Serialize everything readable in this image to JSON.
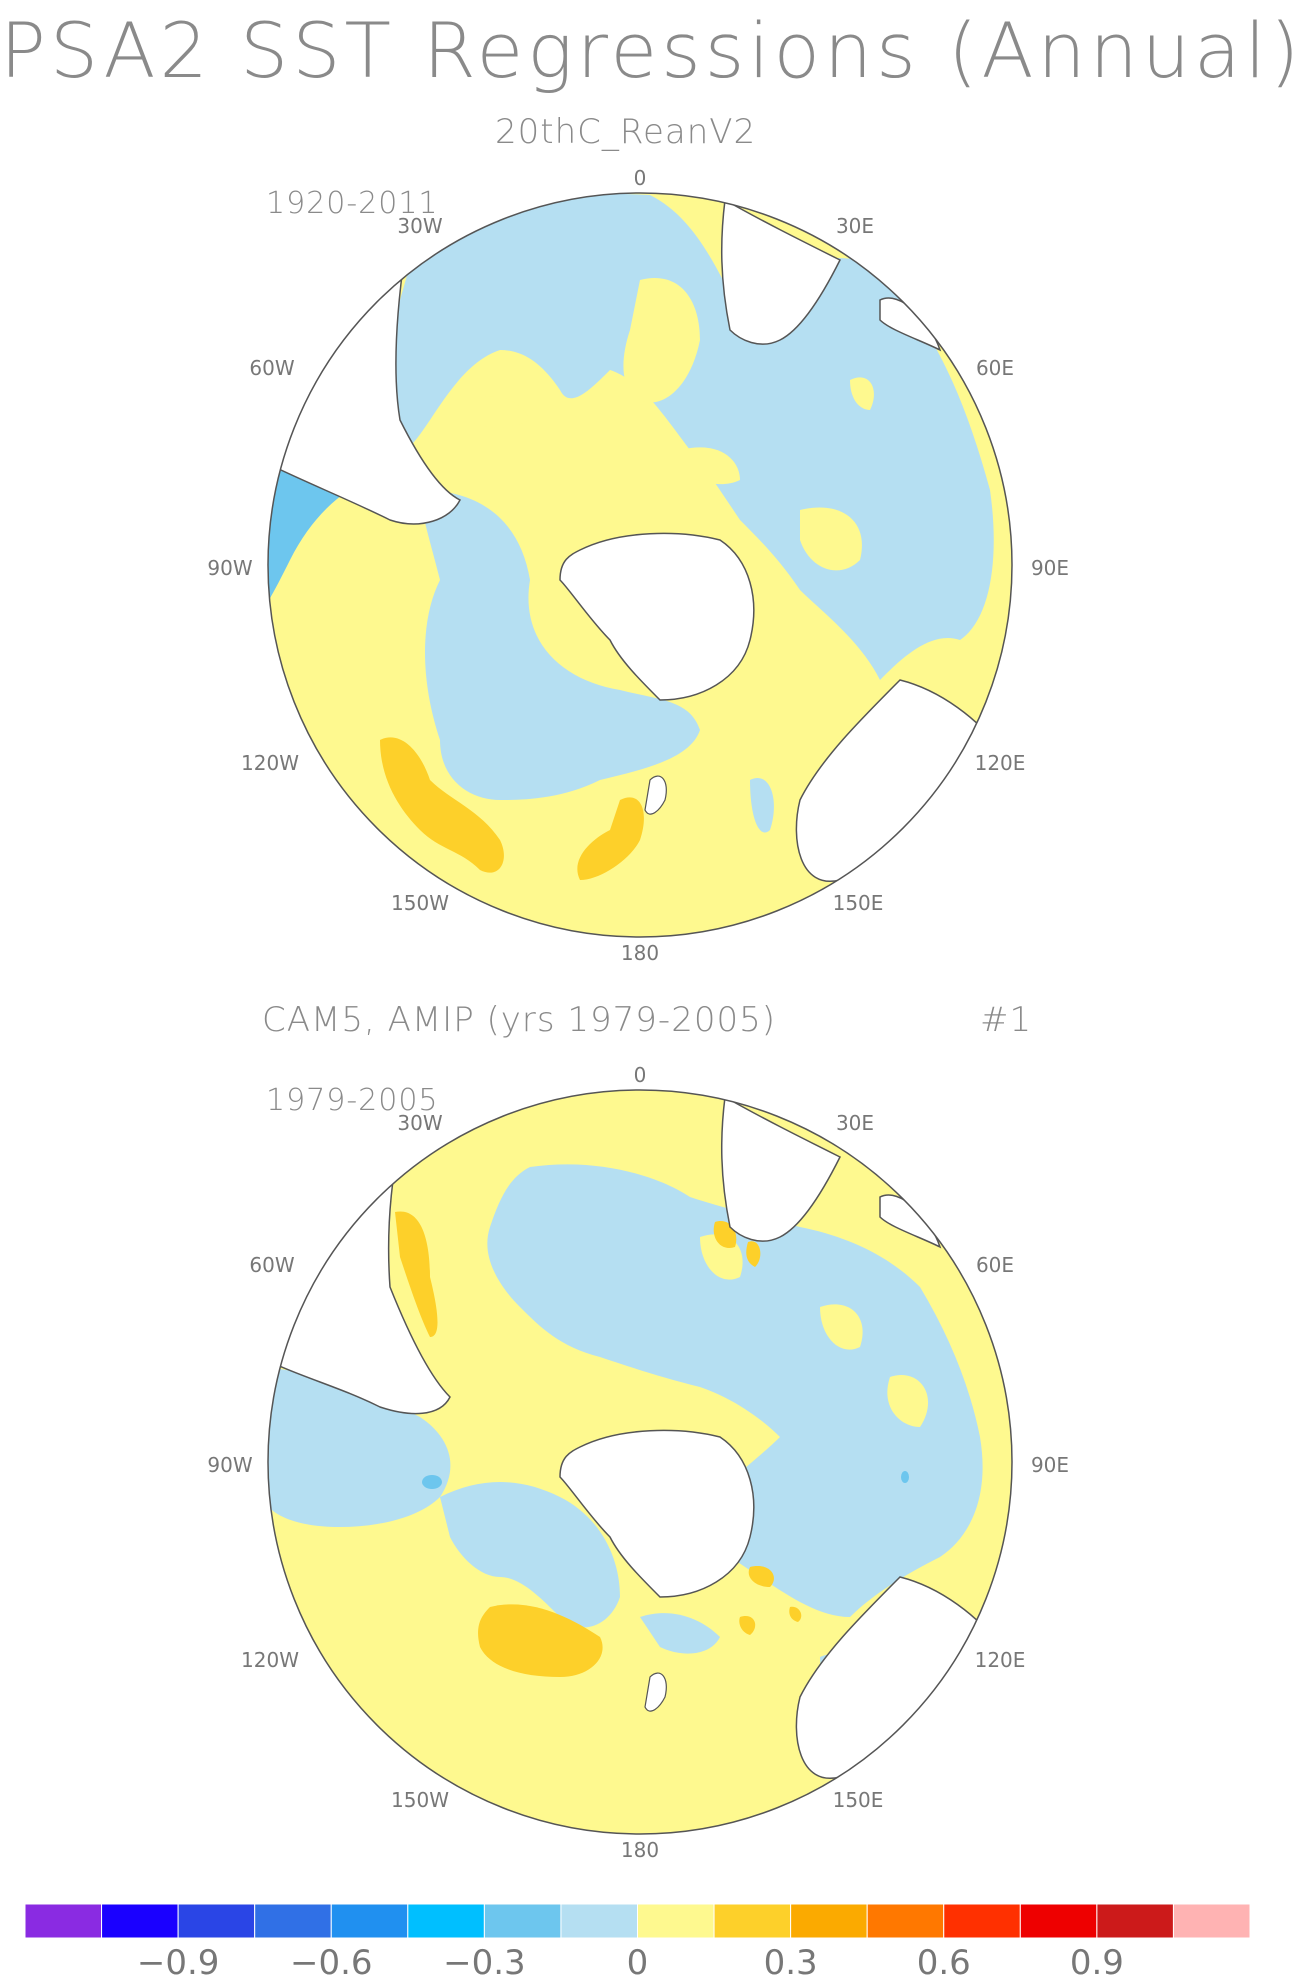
{
  "title": "PSA2 SST Regressions (Annual)",
  "panels": [
    {
      "subtitle": "20thC_ReanV2",
      "period": "1920-2011",
      "tag": ""
    },
    {
      "subtitle": "CAM5, AMIP (yrs 1979-2005)",
      "period": "1979-2005",
      "tag": "#1"
    }
  ],
  "longitude_labels": [
    "0",
    "30E",
    "60E",
    "90E",
    "120E",
    "150E",
    "180",
    "150W",
    "120W",
    "90W",
    "60W",
    "30W"
  ],
  "colors": {
    "land": "#ffffff",
    "coast": "#555555",
    "pos_weak": "#fef98f",
    "pos_mid": "#fdd02a",
    "neg_weak": "#b5dff2",
    "neg_mid": "#6dc6ee"
  },
  "colorbar": {
    "colors": [
      "#8a2be2",
      "#1a00ff",
      "#2a45e6",
      "#3070e6",
      "#2090f0",
      "#00bfff",
      "#6dc6ee",
      "#b5dff2",
      "#fef98f",
      "#fdd02a",
      "#fbaa00",
      "#ff7800",
      "#ff3000",
      "#ee0000",
      "#cc1a1a",
      "#ffb3b3"
    ],
    "labels": [
      "−0.9",
      "−0.6",
      "−0.3",
      "0",
      "0.3",
      "0.6",
      "0.9"
    ]
  }
}
